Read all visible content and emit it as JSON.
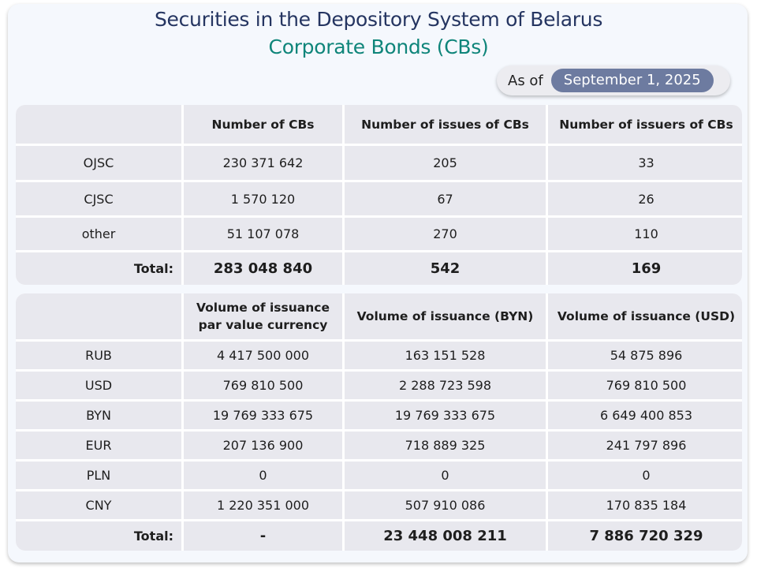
{
  "header": {
    "title": "Securities in the Depository System of Belarus",
    "subtitle": "Corporate Bonds (CBs)",
    "as_of_label": "As of",
    "as_of_date": "September 1, 2025"
  },
  "table1": {
    "columns": [
      "",
      "Number of CBs",
      "Number of issues of CBs",
      "Number of issuers of CBs"
    ],
    "rows": [
      [
        "OJSC",
        "230 371 642",
        "205",
        "33"
      ],
      [
        "CJSC",
        "1 570 120",
        "67",
        "26"
      ],
      [
        "other",
        "51 107 078",
        "270",
        "110"
      ]
    ],
    "total": [
      "Total:",
      "283 048 840",
      "542",
      "169"
    ]
  },
  "table2": {
    "columns": [
      "",
      "Volume of issuance par value currency",
      "Volume of issuance (BYN)",
      "Volume of issuance (USD)"
    ],
    "rows": [
      [
        "RUB",
        "4 417 500 000",
        "163 151 528",
        "54 875 896"
      ],
      [
        "USD",
        "769 810 500",
        "2 288 723 598",
        "769 810 500"
      ],
      [
        "BYN",
        "19 769 333 675",
        "19 769 333 675",
        "6 649 400 853"
      ],
      [
        "EUR",
        "207 136 900",
        "718 889 325",
        "241 797 896"
      ],
      [
        "PLN",
        "0",
        "0",
        "0"
      ],
      [
        "CNY",
        "1 220 351 000",
        "507 910 086",
        "170 835 184"
      ]
    ],
    "total": [
      "Total:",
      "-",
      "23 448 008 211",
      "7 886 720 329"
    ]
  }
}
